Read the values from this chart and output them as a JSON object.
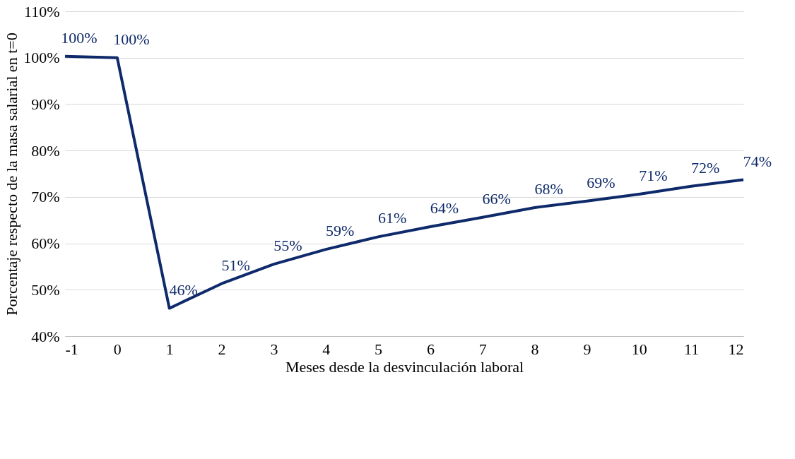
{
  "chart_data": {
    "type": "line",
    "xlabel": "Meses desde la desvinculación laboral",
    "ylabel": "Porcentaje respecto de la masa salarial en t=0",
    "x": [
      -1,
      0,
      1,
      2,
      3,
      4,
      5,
      6,
      7,
      8,
      9,
      10,
      11,
      12
    ],
    "series": [
      {
        "color": "#0e2a6b",
        "values": [
          100.3,
          100,
          46,
          51.3,
          55.5,
          58.7,
          61.4,
          63.6,
          65.6,
          67.7,
          69.1,
          70.6,
          72.3,
          73.7
        ],
        "value_labels": [
          "100%",
          "100%",
          "46%",
          "51%",
          "55%",
          "59%",
          "61%",
          "64%",
          "66%",
          "68%",
          "69%",
          "71%",
          "72%",
          "74%"
        ]
      }
    ],
    "xlim": [
      -1,
      12
    ],
    "xticks": [
      -1,
      0,
      1,
      2,
      3,
      4,
      5,
      6,
      7,
      8,
      9,
      10,
      11,
      12
    ],
    "ylim": [
      40,
      110
    ],
    "yticks": [
      {
        "value": 40,
        "label": "40%"
      },
      {
        "value": 50,
        "label": "50%"
      },
      {
        "value": 60,
        "label": "60%"
      },
      {
        "value": 70,
        "label": "70%"
      },
      {
        "value": 80,
        "label": "80%"
      },
      {
        "value": 90,
        "label": "90%"
      },
      {
        "value": 100,
        "label": "100%"
      },
      {
        "value": 110,
        "label": "110%"
      }
    ],
    "grid": "y",
    "marker": "none",
    "line_style": "solid"
  }
}
